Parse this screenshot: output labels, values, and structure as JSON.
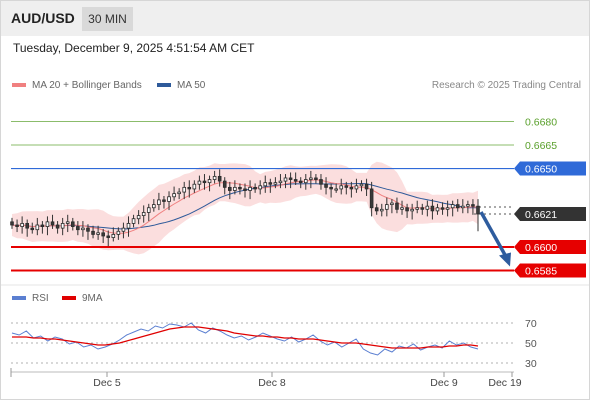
{
  "header": {
    "pair": "AUD/USD",
    "timeframe": "30 MIN"
  },
  "timestamp": "Tuesday, December 9, 2025 4:51:54 AM CET",
  "legend": {
    "ma20_label": "MA 20 + Bollinger Bands",
    "ma50_label": "MA 50",
    "credit": "Research © 2025 Trading Central",
    "ma20_color": "#f08080",
    "ma50_color": "#2e5a9a"
  },
  "rsi_legend": {
    "rsi_label": "RSI",
    "ma_label": "9MA",
    "rsi_color": "#5b7fd1",
    "ma_color": "#e00000"
  },
  "chart_data": [
    {
      "type": "candlestick",
      "title": "AUD/USD 30 MIN",
      "xlabel": "",
      "ylabel": "",
      "x_ticks": [
        "Dec 5",
        "Dec 8",
        "Dec 9",
        "Dec 19"
      ],
      "y_ticks": [
        "0.6680",
        "0.6665",
        "0.6650",
        "0.6621",
        "0.6600",
        "0.6585"
      ],
      "ylim": [
        0.6577,
        0.6695
      ],
      "grid": false,
      "legend_position": "top-left",
      "closes": [
        0.6614,
        0.6613,
        0.6615,
        0.6612,
        0.6611,
        0.6614,
        0.6613,
        0.6616,
        0.6614,
        0.6612,
        0.6615,
        0.6616,
        0.6613,
        0.6611,
        0.6612,
        0.661,
        0.6608,
        0.6609,
        0.6607,
        0.6606,
        0.6608,
        0.661,
        0.6612,
        0.6615,
        0.6618,
        0.662,
        0.6622,
        0.6625,
        0.6627,
        0.663,
        0.6629,
        0.6632,
        0.6634,
        0.6635,
        0.6638,
        0.6637,
        0.664,
        0.6642,
        0.6641,
        0.6643,
        0.6645,
        0.6642,
        0.6638,
        0.6636,
        0.6638,
        0.6637,
        0.6636,
        0.6638,
        0.6637,
        0.6639,
        0.6641,
        0.664,
        0.6641,
        0.6642,
        0.6644,
        0.6643,
        0.6642,
        0.6641,
        0.6643,
        0.6644,
        0.6643,
        0.664,
        0.6638,
        0.6637,
        0.6637,
        0.6639,
        0.6638,
        0.6637,
        0.6639,
        0.664,
        0.6637,
        0.6625,
        0.6623,
        0.6624,
        0.6627,
        0.6628,
        0.6624,
        0.6625,
        0.6623,
        0.6624,
        0.6625,
        0.6624,
        0.6626,
        0.6623,
        0.6625,
        0.6624,
        0.6625,
        0.6627,
        0.6625,
        0.6626,
        0.6627,
        0.6626,
        0.6621
      ],
      "price_levels": [
        {
          "label": "0.6680",
          "value": 0.668,
          "role": "target",
          "color": "#5aa02c"
        },
        {
          "label": "0.6665",
          "value": 0.6665,
          "role": "target",
          "color": "#5aa02c"
        },
        {
          "label": "0.6650",
          "value": 0.665,
          "role": "pivot",
          "color": "#2f6ad8"
        },
        {
          "label": "0.6621",
          "value": 0.6621,
          "role": "last",
          "color": "#333333"
        },
        {
          "label": "0.6600",
          "value": 0.66,
          "role": "target",
          "color": "#e60000"
        },
        {
          "label": "0.6585",
          "value": 0.6585,
          "role": "target",
          "color": "#e60000"
        }
      ],
      "series": [
        {
          "name": "MA 20 + Bollinger Bands"
        },
        {
          "name": "MA 50"
        }
      ],
      "projection": {
        "from": 0.6621,
        "to": 0.6585
      }
    },
    {
      "type": "line",
      "title": "",
      "xlabel": "",
      "ylabel": "",
      "y_ticks": [
        70,
        50,
        30
      ],
      "ylim": [
        25,
        80
      ],
      "legend_position": "top-left",
      "series": [
        {
          "name": "RSI",
          "values": [
            60,
            58,
            62,
            55,
            57,
            52,
            56,
            54,
            49,
            51,
            46,
            48,
            44,
            46,
            49,
            53,
            58,
            61,
            64,
            62,
            67,
            65,
            69,
            68,
            66,
            70,
            63,
            60,
            65,
            62,
            58,
            55,
            57,
            53,
            56,
            60,
            57,
            54,
            52,
            56,
            51,
            54,
            58,
            52,
            48,
            51,
            46,
            50,
            54,
            44,
            40,
            38,
            44,
            41,
            47,
            45,
            49,
            43,
            46,
            48,
            45,
            52,
            48,
            50,
            46,
            44
          ],
          "ma9": [
            56,
            56,
            56,
            55,
            55,
            54,
            54,
            53,
            52,
            51,
            50,
            49,
            48,
            48,
            49,
            50,
            52,
            54,
            56,
            58,
            60,
            62,
            64,
            65,
            66,
            66,
            66,
            65,
            64,
            63,
            62,
            60,
            59,
            58,
            57,
            57,
            56,
            56,
            55,
            55,
            54,
            54,
            54,
            53,
            52,
            51,
            50,
            50,
            50,
            49,
            48,
            47,
            46,
            45,
            45,
            45,
            45,
            45,
            46,
            46,
            46,
            47,
            47,
            48,
            48,
            47
          ]
        }
      ]
    }
  ],
  "rsi_axis": {
    "ticks": [
      "70",
      "50",
      "30"
    ]
  },
  "x_axis": {
    "ticks": [
      "Dec 5",
      "Dec 8",
      "Dec 9",
      "Dec 19"
    ]
  }
}
